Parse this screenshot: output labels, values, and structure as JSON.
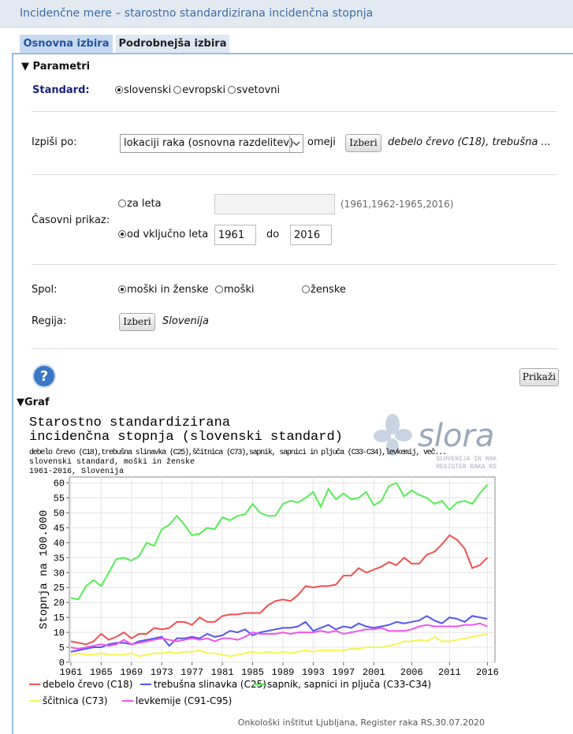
{
  "header": {
    "title": "Incidenčne mere – starostno standardizirana incidenčna stopnja"
  },
  "tabs": [
    "Osnovna izbira",
    "Podrobnejša izbira"
  ],
  "parametri": {
    "title": "Parametri",
    "standard": {
      "label": "Standard:",
      "options": [
        "slovenski",
        "evropski",
        "svetovni"
      ],
      "selected": 0
    },
    "izpisi": {
      "label": "Izpiši po:",
      "select": "lokaciji raka (osnovna razdelitev)",
      "omeji": "omeji",
      "button": "Izberi",
      "selection": "debelo črevo (C18), trebušna ..."
    },
    "casovni": {
      "label": "Časovni prikaz:",
      "options": [
        "za leta",
        "od vključno leta"
      ],
      "selected": 1,
      "hint": "(1961,1962-1965,2016)",
      "from": "1961",
      "do": "do",
      "to": "2016"
    },
    "spol": {
      "label": "Spol:",
      "options": [
        "moški in ženske",
        "moški",
        "ženske"
      ],
      "selected": 0
    },
    "regija": {
      "label": "Regija:",
      "button": "Izberi",
      "selection": "Slovenija"
    },
    "submit": "Prikaži"
  },
  "graf": {
    "title": "Graf"
  },
  "chart_data": {
    "type": "line",
    "title": [
      "Starostno standardizirana",
      "incidenčna stopnja (slovenski standard)"
    ],
    "subtitle": [
      "debelo črevo  (C18),trebušna slinavka  (C25),ščitnica  (C73),sapnik, sapnici in pljuča (C33-C34),levkemij, več...",
      "slovenski standard, moški in ženske",
      "1961-2016, Slovenija"
    ],
    "logo": {
      "name": "slora",
      "line1": "SLOVENIJA IN RAK",
      "line2": "REGISTER RAKA RS"
    },
    "ylabel": "Stopnja na 100.000",
    "footer": "Onkološki inštitut Ljubljana, Register raka RS,30.07.2020",
    "x": [
      1961,
      1962,
      1963,
      1964,
      1965,
      1966,
      1967,
      1968,
      1969,
      1970,
      1971,
      1972,
      1973,
      1974,
      1975,
      1976,
      1977,
      1978,
      1979,
      1980,
      1981,
      1982,
      1983,
      1984,
      1985,
      1986,
      1987,
      1988,
      1989,
      1990,
      1991,
      1992,
      1993,
      1994,
      1995,
      1996,
      1997,
      1998,
      1999,
      2000,
      2001,
      2002,
      2003,
      2004,
      2005,
      2006,
      2007,
      2008,
      2009,
      2010,
      2011,
      2012,
      2013,
      2014,
      2015,
      2016
    ],
    "xlim": [
      1960.8,
      2017
    ],
    "xticks": [
      1961,
      1965,
      1969,
      1973,
      1977,
      1981,
      1985,
      1989,
      1993,
      1997,
      2001,
      2006,
      2011,
      2016
    ],
    "ylim": [
      0,
      62
    ],
    "yticks": [
      0,
      5,
      10,
      15,
      20,
      25,
      30,
      35,
      40,
      45,
      50,
      55,
      60
    ],
    "grid": true,
    "series": [
      {
        "name": "debelo črevo (C18)",
        "color": "#f05050",
        "values": [
          7,
          6.5,
          6,
          7,
          9.5,
          7.5,
          8.5,
          10,
          8,
          9.5,
          9.5,
          11.5,
          11,
          11.5,
          13.5,
          13.5,
          12.5,
          15,
          13.5,
          13.5,
          15.5,
          16,
          16,
          16.5,
          16.5,
          16.5,
          19,
          20.5,
          21,
          20.5,
          22.5,
          25.5,
          25,
          25.5,
          25.5,
          26,
          29,
          29,
          31.5,
          30,
          31,
          32,
          33.5,
          32.5,
          35,
          33,
          33,
          36,
          37,
          39.5,
          42.5,
          41,
          38,
          31.5,
          32.5,
          35
        ]
      },
      {
        "name": "trebušna slinavka (C25)",
        "color": "#5555ee",
        "values": [
          3.5,
          4,
          4.5,
          5,
          5,
          6,
          6.5,
          6.5,
          6,
          7,
          7.5,
          8,
          8.5,
          5.5,
          8,
          8,
          8.5,
          8,
          9.5,
          8.5,
          9,
          10.5,
          10,
          11,
          9,
          10,
          10.5,
          11,
          11.5,
          11.5,
          12,
          13.5,
          10.5,
          11.5,
          12.5,
          11,
          12,
          11.5,
          13,
          12,
          11.5,
          12,
          12.5,
          13.5,
          13,
          13.5,
          14,
          15.5,
          14,
          13,
          15,
          14.5,
          13.5,
          15.5,
          15,
          14.5
        ]
      },
      {
        "name": "sapnik, sapnici in pljuča (C33-C34)",
        "color": "#55ee55",
        "values": [
          21.5,
          21,
          25.5,
          27.5,
          25.5,
          30,
          34.5,
          35,
          34,
          35.5,
          40,
          39,
          44.5,
          46,
          49,
          46,
          42.5,
          43,
          45,
          44.5,
          48.5,
          47.5,
          49,
          49.5,
          53,
          50,
          49,
          49,
          53,
          54,
          53.5,
          55,
          57,
          52,
          58,
          54.5,
          56.5,
          54.5,
          55,
          57,
          52.5,
          54,
          59,
          60,
          55.5,
          57.5,
          56,
          55,
          53,
          54,
          51,
          53.5,
          54,
          53,
          56.5,
          59.5
        ]
      },
      {
        "name": "ščitnica (C73)",
        "color": "#f5f550",
        "values": [
          2.5,
          3,
          2.5,
          2.5,
          3,
          2.5,
          2.5,
          2.5,
          3,
          2,
          2.5,
          3,
          3,
          3.5,
          3,
          3.5,
          3.5,
          4,
          3,
          3,
          2.5,
          2,
          2.5,
          3,
          3.5,
          3,
          3.5,
          3,
          3.5,
          3,
          3.5,
          4,
          3.5,
          4,
          4,
          4,
          4,
          4.5,
          4.5,
          5,
          5,
          5,
          5.5,
          6,
          7,
          7,
          7.5,
          7,
          8.5,
          7,
          7,
          7.5,
          8,
          8.5,
          9,
          9.5
        ]
      },
      {
        "name": "levkemije (C91-C95)",
        "color": "#ee55ee",
        "values": [
          5,
          4.5,
          5,
          5.5,
          6,
          5.5,
          6,
          7.5,
          6,
          6.5,
          7,
          7.5,
          8,
          7.5,
          7,
          7.5,
          8,
          7.5,
          8,
          7,
          8,
          8,
          7.5,
          8.5,
          10,
          9.5,
          9.5,
          9.5,
          10,
          9.5,
          10,
          10,
          10,
          10.5,
          10,
          10.5,
          9.5,
          10,
          10.5,
          11,
          11,
          11.5,
          10.5,
          10.5,
          10.5,
          11,
          12,
          12.5,
          12,
          12,
          12,
          12,
          12.5,
          12.5,
          13,
          12
        ]
      }
    ]
  }
}
